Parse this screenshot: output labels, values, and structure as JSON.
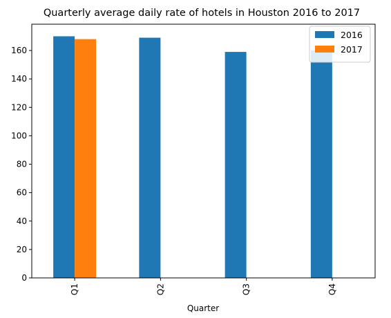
{
  "chart_data": {
    "type": "bar",
    "title": "Quarterly average daily rate of hotels in Houston 2016 to 2017",
    "xlabel": "Quarter",
    "ylabel": "",
    "categories": [
      "Q1",
      "Q2",
      "Q3",
      "Q4"
    ],
    "series": [
      {
        "name": "2016",
        "color": "#1f77b4",
        "values": [
          170,
          169,
          159,
          160
        ]
      },
      {
        "name": "2017",
        "color": "#ff7f0e",
        "values": [
          168,
          null,
          null,
          null
        ]
      }
    ],
    "ylim": [
      0,
      178.5
    ],
    "yticks": [
      0,
      20,
      40,
      60,
      80,
      100,
      120,
      140,
      160
    ],
    "grid": false,
    "legend_position": "top-right"
  }
}
